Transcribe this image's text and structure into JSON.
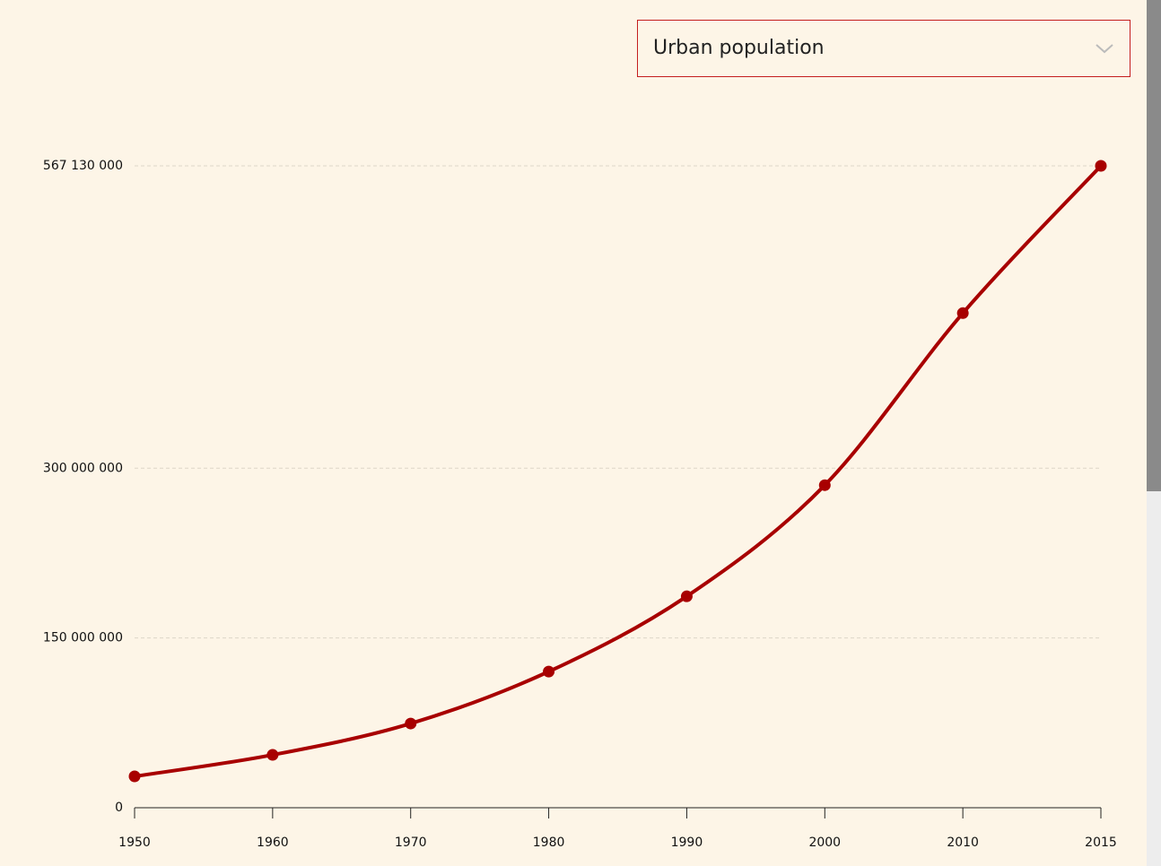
{
  "dropdown": {
    "label": "Urban population"
  },
  "chart_data": {
    "type": "line",
    "categories": [
      "1950",
      "1960",
      "1970",
      "1980",
      "1990",
      "2000",
      "2010",
      "2015"
    ],
    "series": [
      {
        "name": "Urban population",
        "color": "#a80000",
        "values": [
          27700000,
          46700000,
          74400000,
          120300000,
          186800000,
          285000000,
          437000000,
          567130000
        ]
      }
    ],
    "ylim": [
      0,
      567130000
    ],
    "yticks": [
      0,
      {
        "value": 150000000,
        "label": "150 000 000"
      },
      {
        "value": 300000000,
        "label": "300 000 000"
      },
      {
        "value": 567130000,
        "label": "567 130 000"
      }
    ],
    "grid": true
  }
}
